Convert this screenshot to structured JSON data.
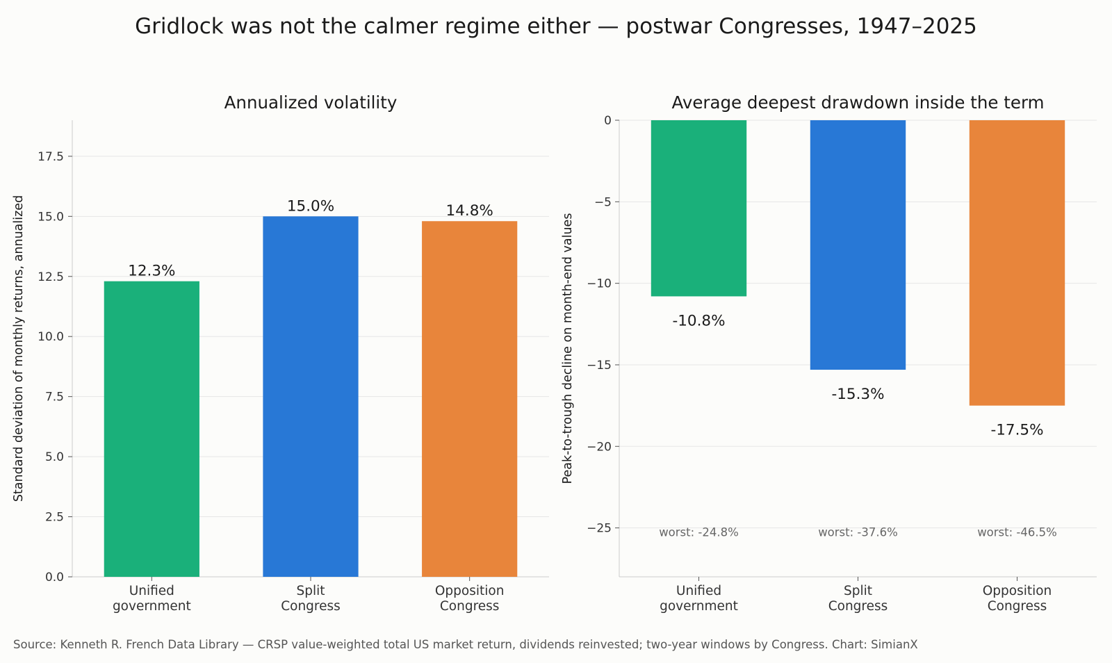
{
  "title": "Gridlock was not the calmer regime either — postwar Congresses, 1947–2025",
  "source": "Source: Kenneth R. French Data Library — CRSP value-weighted total US market return, dividends reinvested; two-year windows by Congress.  Chart: SimianX",
  "colors": {
    "unified": "#1ab07a",
    "split": "#2878d6",
    "opposition": "#e8853b",
    "grid": "#e6e6e6",
    "axis": "#cccccc",
    "text": "#1a1a1a",
    "tick_text": "#333333",
    "note_text": "#666666"
  },
  "chart_data": [
    {
      "type": "bar",
      "title": "Annualized volatility",
      "xlabel": "",
      "ylabel": "Standard deviation of monthly returns, annualized",
      "categories": [
        "Unified\ngovernment",
        "Split\nCongress",
        "Opposition\nCongress"
      ],
      "values": [
        12.3,
        15.0,
        14.8
      ],
      "value_labels": [
        "12.3%",
        "15.0%",
        "14.8%"
      ],
      "ylim": [
        0,
        19
      ],
      "yticks": [
        0,
        2.5,
        5,
        7.5,
        10,
        12.5,
        15,
        17.5
      ],
      "ytick_labels": [
        "0.0",
        "2.5",
        "5.0",
        "7.5",
        "10.0",
        "12.5",
        "15.0",
        "17.5"
      ],
      "grid": true,
      "legend": "none"
    },
    {
      "type": "bar",
      "title": "Average deepest drawdown inside the term",
      "xlabel": "",
      "ylabel": "Peak-to-trough decline on month-end values",
      "categories": [
        "Unified\ngovernment",
        "Split\nCongress",
        "Opposition\nCongress"
      ],
      "values": [
        -10.8,
        -15.3,
        -17.5
      ],
      "value_labels": [
        "-10.8%",
        "-15.3%",
        "-17.5%"
      ],
      "worst_values": [
        -24.8,
        -37.6,
        -46.5
      ],
      "worst_labels": [
        "worst: -24.8%",
        "worst: -37.6%",
        "worst: -46.5%"
      ],
      "ylim": [
        -28,
        0
      ],
      "yticks": [
        0,
        -5,
        -10,
        -15,
        -20,
        -25
      ],
      "ytick_labels": [
        "0",
        "−5",
        "−10",
        "−15",
        "−20",
        "−25"
      ],
      "grid": true,
      "legend": "none"
    }
  ]
}
